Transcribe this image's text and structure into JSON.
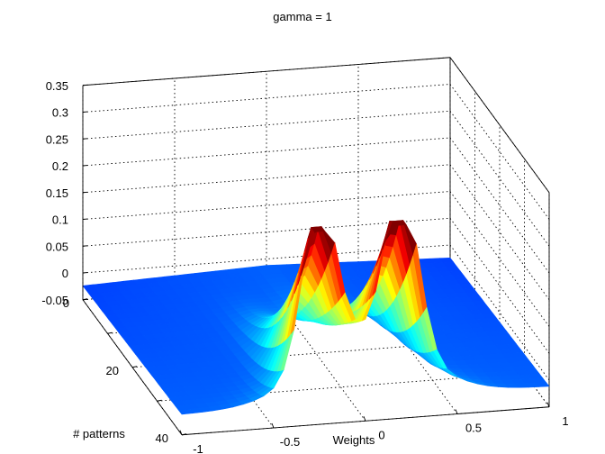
{
  "chart_data": {
    "type": "surface",
    "title": "gamma = 1",
    "xlabel": "Weights",
    "ylabel": "# patterns",
    "zlabel": "",
    "colormap": "jet",
    "grid": true,
    "box": true,
    "xlim": [
      -1,
      1
    ],
    "ylim": [
      0,
      40
    ],
    "zlim": [
      -0.05,
      0.35
    ],
    "x_ticks": [
      "-1",
      "-0.5",
      "0",
      "0.5",
      "1"
    ],
    "y_ticks": [
      "0",
      "20",
      "40"
    ],
    "z_ticks": [
      "-0.05",
      "0",
      "0.05",
      "0.1",
      "0.15",
      "0.2",
      "0.25",
      "0.3",
      "0.35"
    ],
    "surface_description_points": [
      {
        "weight": -0.25,
        "patterns": 40,
        "value": 0.31
      },
      {
        "weight": 0.2,
        "patterns": 40,
        "value": 0.31
      },
      {
        "weight": 0.0,
        "patterns": 40,
        "value": 0.2
      },
      {
        "weight": -1.0,
        "patterns": 0,
        "value": -0.01
      },
      {
        "weight": 1.0,
        "patterns": 0,
        "value": -0.01
      }
    ]
  }
}
